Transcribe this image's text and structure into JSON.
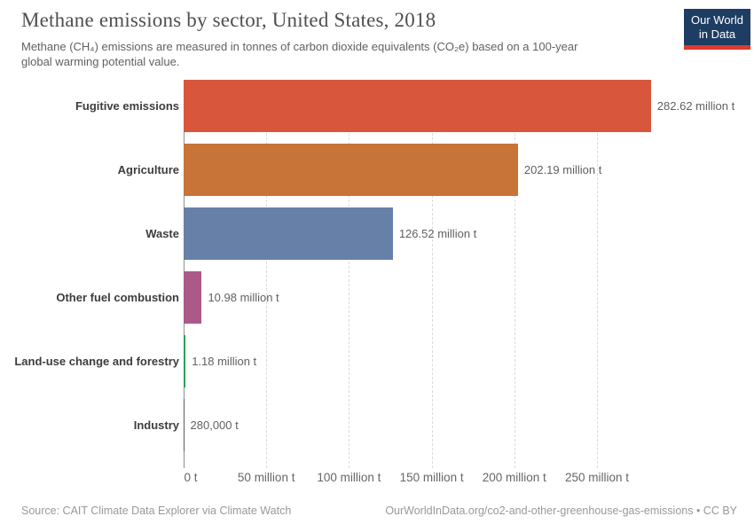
{
  "header": {
    "title": "Methane emissions by sector, United States, 2018",
    "subtitle_lines": [
      "Methane (CH₄) emissions are measured in tonnes of carbon dioxide equivalents (CO₂e) based on a 100-year",
      "global warming potential value."
    ],
    "logo": {
      "line1": "Our World",
      "line2": "in Data",
      "bg_color": "#1d3d63",
      "accent_color": "#e0392e"
    }
  },
  "chart_data": {
    "type": "bar",
    "orientation": "horizontal",
    "title": "Methane emissions by sector, United States, 2018",
    "unit": "million tonnes CO₂e",
    "categories": [
      "Fugitive emissions",
      "Agriculture",
      "Waste",
      "Other fuel combustion",
      "Land-use change and forestry",
      "Industry"
    ],
    "values": [
      282.62,
      202.19,
      126.52,
      10.98,
      1.18,
      0.28
    ],
    "value_labels": [
      "282.62 million t",
      "202.19 million t",
      "126.52 million t",
      "10.98 million t",
      "1.18 million t",
      "280,000 t"
    ],
    "bar_colors": [
      "#d8573c",
      "#c87338",
      "#6780a8",
      "#ab5a88",
      "#2aa05c",
      "#5b5b5b"
    ],
    "x_ticks": [
      {
        "value": 0,
        "label": "0 t"
      },
      {
        "value": 50,
        "label": "50 million t"
      },
      {
        "value": 100,
        "label": "100 million t"
      },
      {
        "value": 150,
        "label": "150 million t"
      },
      {
        "value": 200,
        "label": "200 million t"
      },
      {
        "value": 250,
        "label": "250 million t"
      }
    ],
    "xlim": [
      0,
      283
    ],
    "grid": true,
    "gridline_color": "#dcdcdc",
    "axis_line_color": "#8f8f8f"
  },
  "footer": {
    "source": "Source: CAIT Climate Data Explorer via Climate Watch",
    "attribution": "OurWorldInData.org/co2-and-other-greenhouse-gas-emissions • CC BY"
  }
}
